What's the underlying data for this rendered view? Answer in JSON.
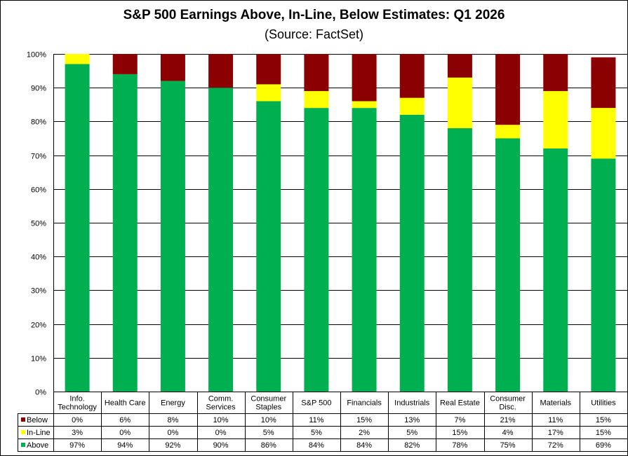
{
  "chart_data": {
    "type": "bar",
    "stacked": true,
    "title": "S&P 500 Earnings Above, In-Line, Below Estimates: Q1 2026",
    "subtitle": "(Source: FactSet)",
    "categories": [
      [
        "Info.",
        "Technology"
      ],
      [
        "Health Care"
      ],
      [
        "Energy"
      ],
      [
        "Comm.",
        "Services"
      ],
      [
        "Consumer",
        "Staples"
      ],
      [
        "S&P 500"
      ],
      [
        "Financials"
      ],
      [
        "Industrials"
      ],
      [
        "Real Estate"
      ],
      [
        "Consumer",
        "Disc."
      ],
      [
        "Materials"
      ],
      [
        "Utilities"
      ]
    ],
    "series": [
      {
        "name": "Below",
        "color": "#8B0000",
        "values": [
          0,
          6,
          8,
          10,
          10,
          11,
          15,
          13,
          7,
          21,
          11,
          15
        ],
        "labels": [
          "0%",
          "6%",
          "8%",
          "10%",
          "10%",
          "11%",
          "15%",
          "13%",
          "7%",
          "21%",
          "11%",
          "15%"
        ]
      },
      {
        "name": "In-Line",
        "color": "#FFFF00",
        "values": [
          3,
          0,
          0,
          0,
          5,
          5,
          2,
          5,
          15,
          4,
          17,
          15
        ],
        "labels": [
          "3%",
          "0%",
          "0%",
          "0%",
          "5%",
          "5%",
          "2%",
          "5%",
          "15%",
          "4%",
          "17%",
          "15%"
        ]
      },
      {
        "name": "Above",
        "color": "#00B050",
        "values": [
          97,
          94,
          92,
          90,
          86,
          84,
          84,
          82,
          78,
          75,
          72,
          69
        ],
        "labels": [
          "97%",
          "94%",
          "92%",
          "90%",
          "86%",
          "84%",
          "84%",
          "82%",
          "78%",
          "75%",
          "72%",
          "69%"
        ]
      }
    ],
    "stack_order": [
      "Above",
      "In-Line",
      "Below"
    ],
    "ylim": [
      0,
      100
    ],
    "yticks": [
      "0%",
      "10%",
      "20%",
      "30%",
      "40%",
      "50%",
      "60%",
      "70%",
      "80%",
      "90%",
      "100%"
    ],
    "grid": true,
    "legend": "data-table"
  }
}
